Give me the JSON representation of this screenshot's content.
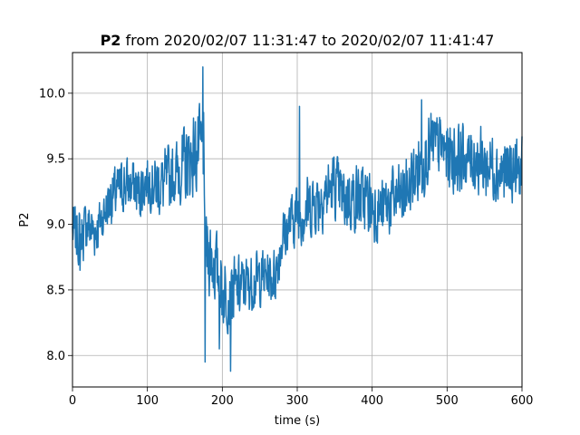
{
  "chart_data": {
    "type": "line",
    "title": {
      "bold": "P2",
      "rest": " from 2020/02/07 11:31:47 to 2020/02/07 11:41:47"
    },
    "xlabel": "time (s)",
    "ylabel": "P2",
    "xlim": [
      0,
      600
    ],
    "ylim": [
      7.76,
      10.31
    ],
    "xticks": [
      0,
      100,
      200,
      300,
      400,
      500,
      600
    ],
    "xtick_labels": [
      "0",
      "100",
      "200",
      "300",
      "400",
      "500",
      "600"
    ],
    "yticks": [
      8.0,
      8.5,
      9.0,
      9.5,
      10.0
    ],
    "ytick_labels": [
      "8.0",
      "8.5",
      "9.0",
      "9.5",
      "10.0"
    ],
    "grid": true,
    "line_color": "#1f77b4",
    "series": [
      {
        "x": [
          0,
          10,
          20,
          30,
          40,
          50,
          60,
          70,
          80,
          90,
          100,
          110,
          120,
          130,
          140,
          150,
          160,
          170,
          175,
          176,
          180,
          190,
          200,
          210,
          220,
          230,
          240,
          250,
          260,
          270,
          280,
          290,
          300,
          310,
          320,
          330,
          340,
          350,
          360,
          370,
          380,
          390,
          400,
          410,
          420,
          430,
          440,
          450,
          460,
          470,
          480,
          490,
          500,
          510,
          520,
          530,
          540,
          550,
          560,
          570,
          580,
          590,
          600
        ],
        "y": [
          8.95,
          8.9,
          9.0,
          8.95,
          9.05,
          9.2,
          9.25,
          9.3,
          9.3,
          9.25,
          9.35,
          9.3,
          9.3,
          9.35,
          9.4,
          9.45,
          9.5,
          9.55,
          9.6,
          8.9,
          8.8,
          8.7,
          8.5,
          8.45,
          8.5,
          8.55,
          8.55,
          8.6,
          8.6,
          8.6,
          8.9,
          9.0,
          9.1,
          9.1,
          9.15,
          9.2,
          9.25,
          9.3,
          9.2,
          9.2,
          9.2,
          9.2,
          9.15,
          9.1,
          9.15,
          9.2,
          9.2,
          9.3,
          9.4,
          9.5,
          9.6,
          9.6,
          9.55,
          9.5,
          9.5,
          9.5,
          9.5,
          9.45,
          9.45,
          9.4,
          9.4,
          9.4,
          9.4
        ],
        "noise_amplitude": [
          0.25,
          0.25,
          0.25,
          0.25,
          0.2,
          0.25,
          0.25,
          0.25,
          0.25,
          0.25,
          0.25,
          0.25,
          0.3,
          0.3,
          0.3,
          0.35,
          0.35,
          0.4,
          0.4,
          0.35,
          0.35,
          0.35,
          0.35,
          0.3,
          0.3,
          0.25,
          0.25,
          0.25,
          0.25,
          0.25,
          0.25,
          0.25,
          0.3,
          0.3,
          0.3,
          0.3,
          0.3,
          0.3,
          0.3,
          0.3,
          0.3,
          0.3,
          0.3,
          0.3,
          0.3,
          0.3,
          0.3,
          0.3,
          0.3,
          0.3,
          0.3,
          0.3,
          0.3,
          0.3,
          0.3,
          0.3,
          0.3,
          0.3,
          0.3,
          0.3,
          0.3,
          0.3,
          0.3
        ],
        "peaks": [
          {
            "x": 174,
            "y": 10.2
          },
          {
            "x": 177,
            "y": 7.95
          },
          {
            "x": 211,
            "y": 7.88
          },
          {
            "x": 196,
            "y": 8.05
          },
          {
            "x": 303,
            "y": 9.9
          },
          {
            "x": 466,
            "y": 9.95
          },
          {
            "x": 10,
            "y": 8.65
          }
        ]
      }
    ]
  }
}
